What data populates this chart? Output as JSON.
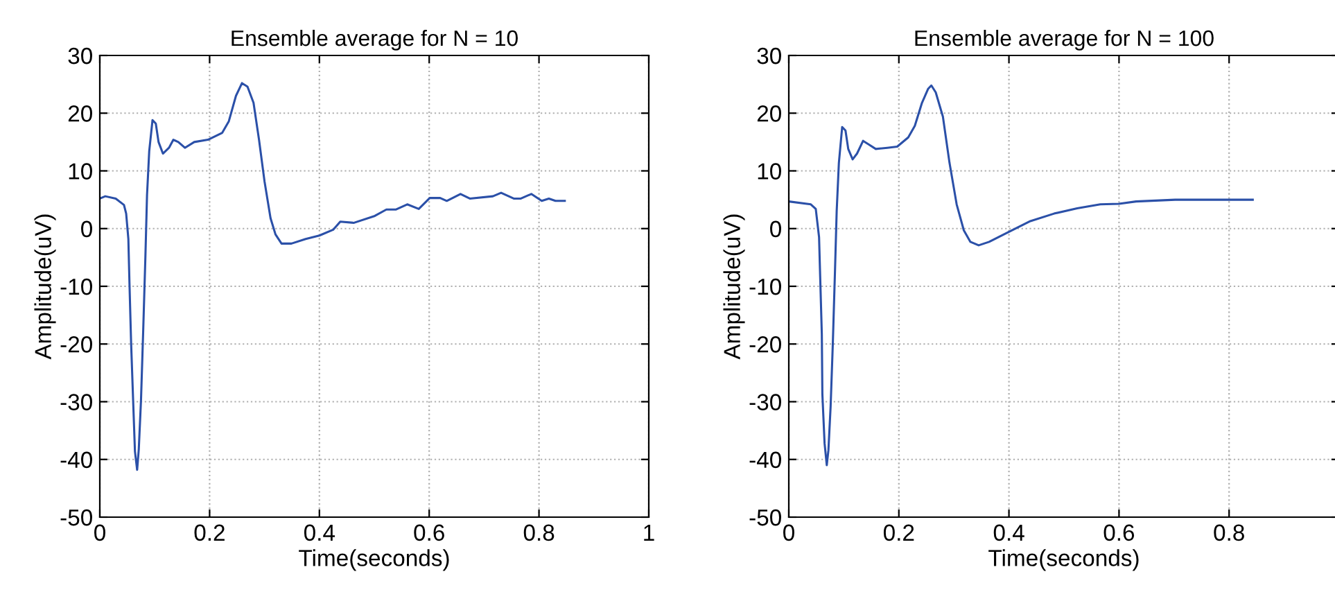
{
  "chart_data": [
    {
      "type": "line",
      "title": "Ensemble average for N = 10",
      "xlabel": "Time(seconds)",
      "ylabel": "Amplitude(uV)",
      "xlim": [
        0,
        1
      ],
      "xticks": [
        0,
        0.2,
        0.4,
        0.6,
        0.8,
        1
      ],
      "ylim": [
        -50,
        30
      ],
      "yticks": [
        -50,
        -40,
        -30,
        -20,
        -10,
        0,
        10,
        20,
        30
      ],
      "grid": true,
      "line_style": "solid",
      "series": [
        {
          "color": "#2b50a8",
          "x": [
            0,
            0.01,
            0.029,
            0.044,
            0.048,
            0.052,
            0.054,
            0.057,
            0.061,
            0.064,
            0.068,
            0.071,
            0.075,
            0.079,
            0.083,
            0.086,
            0.09,
            0.096,
            0.102,
            0.107,
            0.115,
            0.126,
            0.134,
            0.143,
            0.155,
            0.172,
            0.197,
            0.223,
            0.235,
            0.248,
            0.259,
            0.269,
            0.28,
            0.29,
            0.3,
            0.311,
            0.32,
            0.331,
            0.349,
            0.375,
            0.4,
            0.425,
            0.438,
            0.463,
            0.501,
            0.522,
            0.539,
            0.56,
            0.581,
            0.601,
            0.62,
            0.632,
            0.657,
            0.674,
            0.716,
            0.731,
            0.754,
            0.767,
            0.786,
            0.805,
            0.818,
            0.83,
            0.847
          ],
          "values": [
            5.2,
            5.6,
            5.2,
            4.1,
            2.6,
            -1.8,
            -9.4,
            -19.8,
            -30.6,
            -38.6,
            -41.8,
            -38.2,
            -29.8,
            -17.8,
            -5,
            5.8,
            13.4,
            18.8,
            18.2,
            15,
            13,
            14,
            15.4,
            15,
            14,
            15,
            15.4,
            16.6,
            18.6,
            23,
            25.2,
            24.6,
            21.8,
            15.4,
            8.2,
            1.8,
            -1,
            -2.6,
            -2.6,
            -1.8,
            -1.2,
            -0.2,
            1.2,
            1.0,
            2.2,
            3.3,
            3.3,
            4.2,
            3.4,
            5.3,
            5.3,
            4.8,
            6.0,
            5.2,
            5.6,
            6.2,
            5.2,
            5.2,
            6.0,
            4.8,
            5.2,
            4.8,
            4.8
          ]
        }
      ]
    },
    {
      "type": "line",
      "title": "Ensemble average for N = 100",
      "xlabel": "Time(seconds)",
      "ylabel": "Amplitude(uV)",
      "xlim": [
        0,
        1
      ],
      "xticks": [
        0,
        0.2,
        0.4,
        0.6,
        0.8
      ],
      "ylim": [
        -50,
        30
      ],
      "yticks": [
        -50,
        -40,
        -30,
        -20,
        -10,
        0,
        10,
        20,
        30
      ],
      "grid": true,
      "line_style": "solid",
      "series": [
        {
          "color": "#2b50a8",
          "x": [
            0,
            0.04,
            0.049,
            0.055,
            0.057,
            0.06,
            0.061,
            0.065,
            0.069,
            0.072,
            0.076,
            0.08,
            0.084,
            0.087,
            0.091,
            0.097,
            0.103,
            0.108,
            0.116,
            0.124,
            0.135,
            0.145,
            0.158,
            0.179,
            0.197,
            0.217,
            0.229,
            0.242,
            0.253,
            0.259,
            0.267,
            0.28,
            0.292,
            0.305,
            0.318,
            0.33,
            0.345,
            0.364,
            0.397,
            0.439,
            0.482,
            0.524,
            0.566,
            0.6,
            0.631,
            0.702,
            0.843
          ],
          "values": [
            4.7,
            4.2,
            3.4,
            -1.5,
            -8.3,
            -18.3,
            -28.7,
            -37.2,
            -41,
            -38.4,
            -30.8,
            -19.9,
            -7.1,
            3.0,
            11.4,
            17.6,
            17,
            13.8,
            12,
            13,
            15.2,
            14.6,
            13.8,
            14,
            14.2,
            15.8,
            17.8,
            21.8,
            24.2,
            24.8,
            23.6,
            19.4,
            11.4,
            4.2,
            -0.3,
            -2.3,
            -2.9,
            -2.3,
            -0.7,
            1.3,
            2.6,
            3.5,
            4.2,
            4.3,
            4.7,
            5.0,
            5.0
          ]
        }
      ]
    }
  ]
}
